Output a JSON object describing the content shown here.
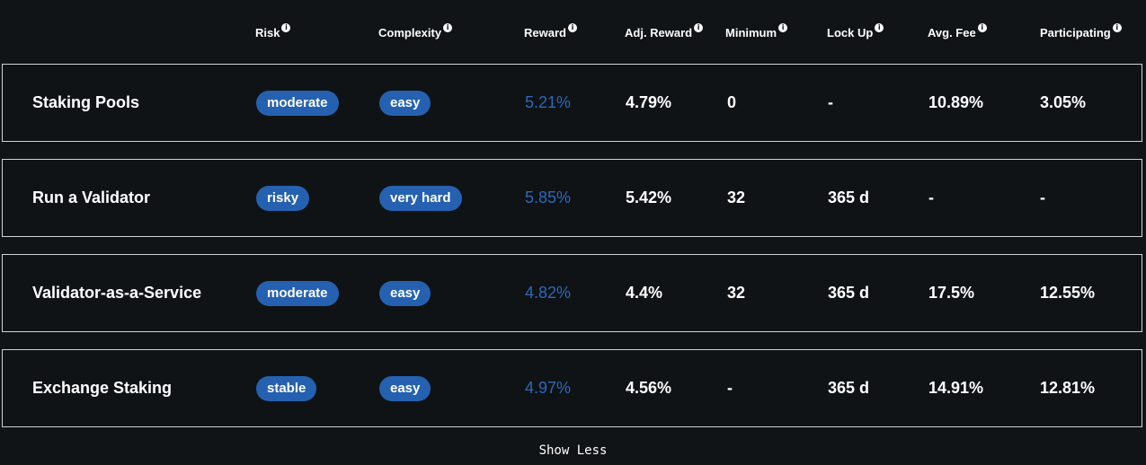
{
  "columns": [
    {
      "key": "risk",
      "label": "Risk"
    },
    {
      "key": "complexity",
      "label": "Complexity"
    },
    {
      "key": "reward",
      "label": "Reward"
    },
    {
      "key": "adj_reward",
      "label": "Adj. Reward"
    },
    {
      "key": "minimum",
      "label": "Minimum"
    },
    {
      "key": "lock_up",
      "label": "Lock Up"
    },
    {
      "key": "avg_fee",
      "label": "Avg. Fee"
    },
    {
      "key": "participating",
      "label": "Participating"
    }
  ],
  "rows": [
    {
      "name": "Staking Pools",
      "risk": "moderate",
      "complexity": "easy",
      "reward": "5.21%",
      "adj_reward": "4.79%",
      "minimum": "0",
      "lock_up": "-",
      "avg_fee": "10.89%",
      "participating": "3.05%"
    },
    {
      "name": "Run a Validator",
      "risk": "risky",
      "complexity": "very hard",
      "reward": "5.85%",
      "adj_reward": "5.42%",
      "minimum": "32",
      "lock_up": "365 d",
      "avg_fee": "-",
      "participating": "-"
    },
    {
      "name": "Validator-as-a-Service",
      "risk": "moderate",
      "complexity": "easy",
      "reward": "4.82%",
      "adj_reward": "4.4%",
      "minimum": "32",
      "lock_up": "365 d",
      "avg_fee": "17.5%",
      "participating": "12.55%"
    },
    {
      "name": "Exchange Staking",
      "risk": "stable",
      "complexity": "easy",
      "reward": "4.97%",
      "adj_reward": "4.56%",
      "minimum": "-",
      "lock_up": "365 d",
      "avg_fee": "14.91%",
      "participating": "12.81%"
    }
  ],
  "info_icon_glyph": "i",
  "show_less_label": "Show Less",
  "colors": {
    "background": "#111417",
    "pill": "#2561b0",
    "reward_text": "#2e67b8",
    "row_border": "#cfd3d8"
  }
}
